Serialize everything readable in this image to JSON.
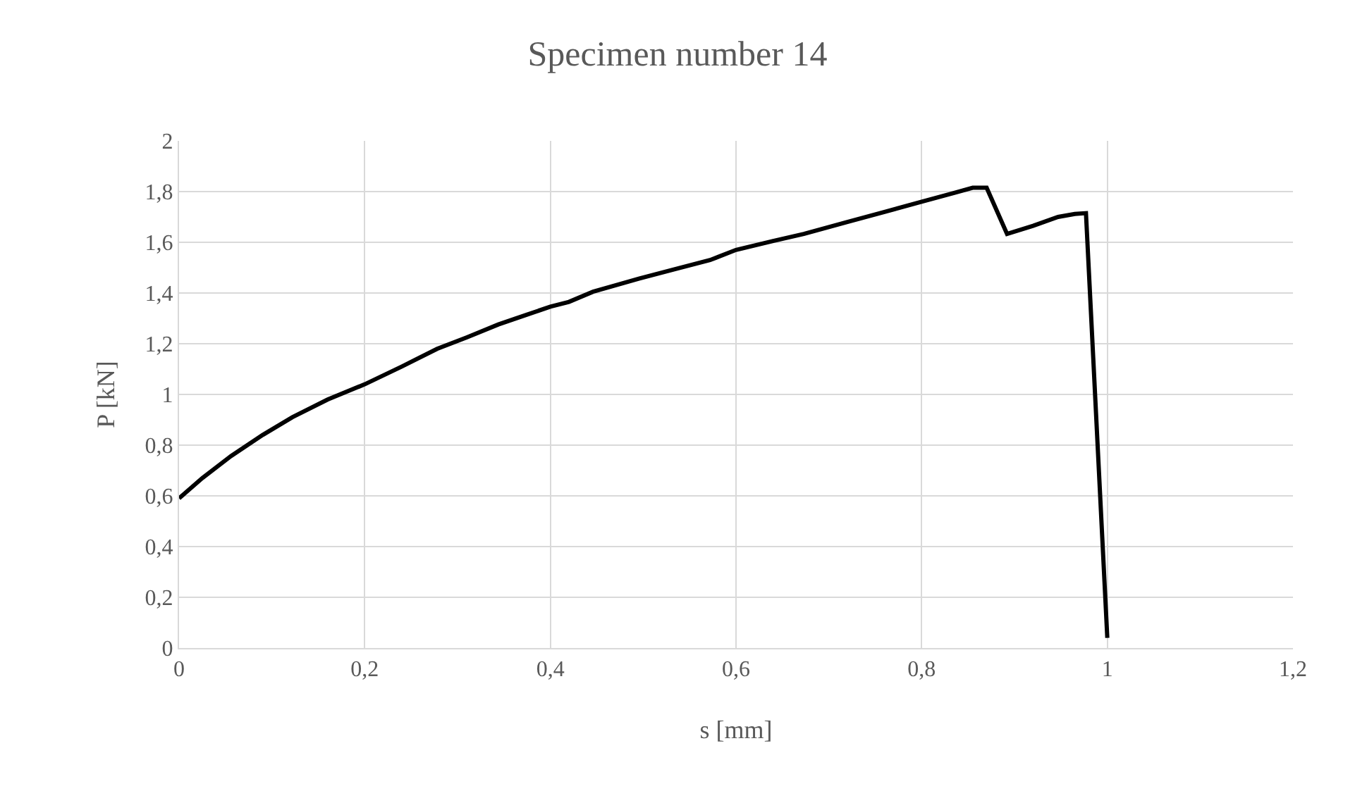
{
  "chart_data": {
    "type": "line",
    "title": "Specimen number 14",
    "xlabel": "s [mm]",
    "ylabel": "P [kN]",
    "x": [
      0,
      0.025,
      0.056,
      0.09,
      0.122,
      0.16,
      0.2,
      0.24,
      0.278,
      0.31,
      0.344,
      0.375,
      0.4,
      0.42,
      0.446,
      0.47,
      0.496,
      0.535,
      0.572,
      0.6,
      0.64,
      0.673,
      0.72,
      0.76,
      0.8,
      0.835,
      0.855,
      0.87,
      0.892,
      0.92,
      0.947,
      0.965,
      0.977,
      1.0
    ],
    "series": [
      {
        "color": "#000000",
        "values": [
          0.59,
          0.67,
          0.757,
          0.84,
          0.91,
          0.98,
          1.04,
          1.11,
          1.18,
          1.225,
          1.276,
          1.315,
          1.346,
          1.365,
          1.405,
          1.43,
          1.457,
          1.495,
          1.53,
          1.57,
          1.605,
          1.633,
          1.68,
          1.72,
          1.76,
          1.795,
          1.815,
          1.815,
          1.633,
          1.665,
          1.7,
          1.712,
          1.715,
          0.04
        ]
      }
    ],
    "xlim": [
      0,
      1.2
    ],
    "xticks": [
      {
        "value": 0,
        "label": "0"
      },
      {
        "value": 0.2,
        "label": "0,2"
      },
      {
        "value": 0.4,
        "label": "0,4"
      },
      {
        "value": 0.6,
        "label": "0,6"
      },
      {
        "value": 0.8,
        "label": "0,8"
      },
      {
        "value": 1,
        "label": "1"
      },
      {
        "value": 1.2,
        "label": "1,2"
      }
    ],
    "ylim": [
      0,
      2
    ],
    "yticks": [
      {
        "value": 0,
        "label": "0"
      },
      {
        "value": 0.2,
        "label": "0,2"
      },
      {
        "value": 0.4,
        "label": "0,4"
      },
      {
        "value": 0.6,
        "label": "0,6"
      },
      {
        "value": 0.8,
        "label": "0,8"
      },
      {
        "value": 1,
        "label": "1"
      },
      {
        "value": 1.2,
        "label": "1,2"
      },
      {
        "value": 1.4,
        "label": "1,4"
      },
      {
        "value": 1.6,
        "label": "1,6"
      },
      {
        "value": 1.8,
        "label": "1,8"
      },
      {
        "value": 2,
        "label": "2"
      }
    ],
    "grid": true,
    "marker": "none",
    "line_style": "solid"
  }
}
